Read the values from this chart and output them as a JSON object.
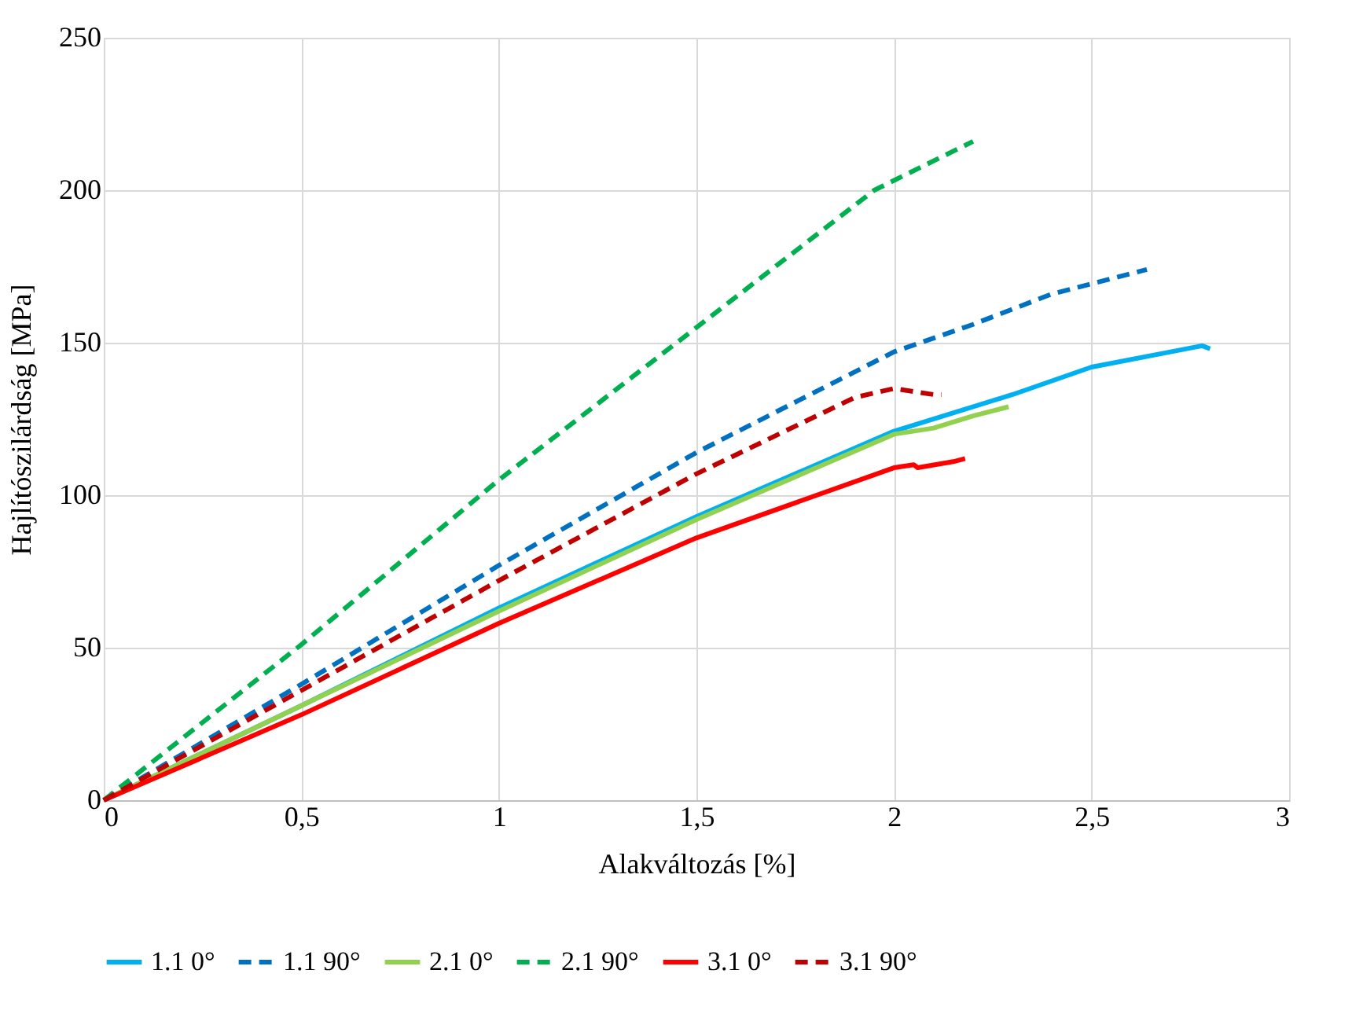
{
  "chart_data": {
    "type": "line",
    "xlabel": "Alakváltozás [%]",
    "ylabel": "Hajlítószilárdság [MPa]",
    "xlim": [
      0,
      3
    ],
    "xticks": [
      0,
      {
        "value": 0.5,
        "label": "0,5"
      },
      1,
      {
        "value": 1.5,
        "label": "1,5"
      },
      2,
      {
        "value": 2.5,
        "label": "2,5"
      },
      3
    ],
    "ylim": [
      0,
      250
    ],
    "yticks": [
      0,
      50,
      100,
      150,
      200,
      250
    ],
    "grid": true,
    "legend": "bottom",
    "marker": "none",
    "series": [
      {
        "name": "1.1 0°",
        "color": "#00b0f0",
        "line_style": "solid",
        "x": [
          0,
          0.5,
          1,
          1.5,
          2,
          2.3,
          2.5,
          2.7,
          2.78,
          2.8
        ],
        "values": [
          0,
          31,
          63,
          93,
          121,
          133,
          142,
          147,
          149,
          148
        ]
      },
      {
        "name": "1.1 90°",
        "color": "#0070c0",
        "line_style": "dashed",
        "x": [
          0,
          0.5,
          1,
          1.5,
          2,
          2.2,
          2.4,
          2.55,
          2.64
        ],
        "values": [
          0,
          38,
          77,
          114,
          147,
          156,
          166,
          171,
          174
        ]
      },
      {
        "name": "2.1 0°",
        "color": "#92d050",
        "line_style": "solid",
        "x": [
          0,
          0.5,
          1,
          1.5,
          2,
          2.1,
          2.2,
          2.29
        ],
        "values": [
          0,
          31,
          62,
          92,
          120,
          122,
          126,
          129
        ]
      },
      {
        "name": "2.1 90°",
        "color": "#00b050",
        "line_style": "dashed",
        "x": [
          0,
          0.5,
          1,
          1.5,
          1.95,
          2.2
        ],
        "values": [
          0,
          51,
          105,
          155,
          200,
          216
        ]
      },
      {
        "name": "3.1 0°",
        "color": "#ff0000",
        "line_style": "solid",
        "x": [
          0,
          0.5,
          1,
          1.5,
          2,
          2.05,
          2.06,
          2.15,
          2.18
        ],
        "values": [
          0,
          28,
          58,
          86,
          109,
          110,
          109,
          111,
          112
        ]
      },
      {
        "name": "3.1 90°",
        "color": "#c00000",
        "line_style": "dashed",
        "x": [
          0,
          0.5,
          1,
          1.5,
          1.9,
          2,
          2.1,
          2.12
        ],
        "values": [
          0,
          36,
          72,
          107,
          132,
          135,
          133,
          133
        ]
      }
    ]
  }
}
